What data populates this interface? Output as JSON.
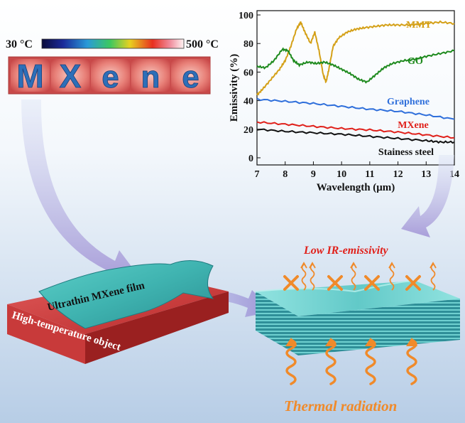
{
  "colorbar": {
    "min_label": "30 °C",
    "max_label": "500 °C"
  },
  "thermal_image": {
    "letters": [
      "M",
      "X",
      "e",
      "n",
      "e"
    ]
  },
  "chart_data": {
    "type": "line",
    "xlabel": "Wavelength (μm)",
    "ylabel": "Emissivity (%)",
    "xlim": [
      7,
      14
    ],
    "ylim": [
      -5,
      103
    ],
    "xticks": [
      7,
      8,
      9,
      10,
      11,
      12,
      13,
      14
    ],
    "yticks": [
      0,
      20,
      40,
      60,
      80,
      100
    ],
    "grid": false,
    "legend": "inline labels beside curves",
    "series": [
      {
        "name": "MMT",
        "color": "#D4A017",
        "x": [
          7,
          7.2,
          7.5,
          7.8,
          8.0,
          8.2,
          8.4,
          8.55,
          8.7,
          8.9,
          9.05,
          9.2,
          9.35,
          9.45,
          9.55,
          9.7,
          9.9,
          10.2,
          10.5,
          10.8,
          11.2,
          11.6,
          12.0,
          12.5,
          13.0,
          13.5,
          14.0
        ],
        "y": [
          44,
          48,
          55,
          62,
          68,
          78,
          90,
          95,
          88,
          80,
          88,
          75,
          58,
          53,
          62,
          78,
          84,
          88,
          90,
          91,
          92,
          93,
          93,
          93,
          94,
          95,
          94
        ]
      },
      {
        "name": "GO",
        "color": "#1E8A1E",
        "x": [
          7,
          7.3,
          7.6,
          7.9,
          8.1,
          8.3,
          8.5,
          8.8,
          9.1,
          9.4,
          9.7,
          10.0,
          10.3,
          10.6,
          10.9,
          11.2,
          11.5,
          11.8,
          12.2,
          12.6,
          13.0,
          13.5,
          14.0
        ],
        "y": [
          64,
          63,
          68,
          76,
          75,
          68,
          65,
          67,
          66,
          67,
          65,
          62,
          59,
          55,
          53,
          58,
          63,
          66,
          68,
          69,
          71,
          73,
          75
        ]
      },
      {
        "name": "Graphene",
        "color": "#2F6FDB",
        "x": [
          7,
          8,
          9,
          10,
          11,
          12,
          13,
          14
        ],
        "y": [
          41,
          39.5,
          38,
          36,
          34,
          32.5,
          30,
          27
        ]
      },
      {
        "name": "MXene",
        "color": "#E0201A",
        "x": [
          7,
          8,
          9,
          10,
          11,
          12,
          13,
          14
        ],
        "y": [
          25,
          23.5,
          22,
          20.5,
          19.5,
          18,
          16,
          14
        ]
      },
      {
        "name": "Stainess steel",
        "color": "#111111",
        "x": [
          7,
          8,
          9,
          10,
          11,
          12,
          13,
          13.5,
          14
        ],
        "y": [
          20,
          18.5,
          17.5,
          16.5,
          15,
          13.5,
          12,
          11,
          11
        ]
      }
    ]
  },
  "film_label": "Ultrathin MXene film",
  "object_label": "High-temperature object",
  "low_emissivity_label": "Low IR-emissivity",
  "thermal_radiation_label": "Thermal radiation"
}
